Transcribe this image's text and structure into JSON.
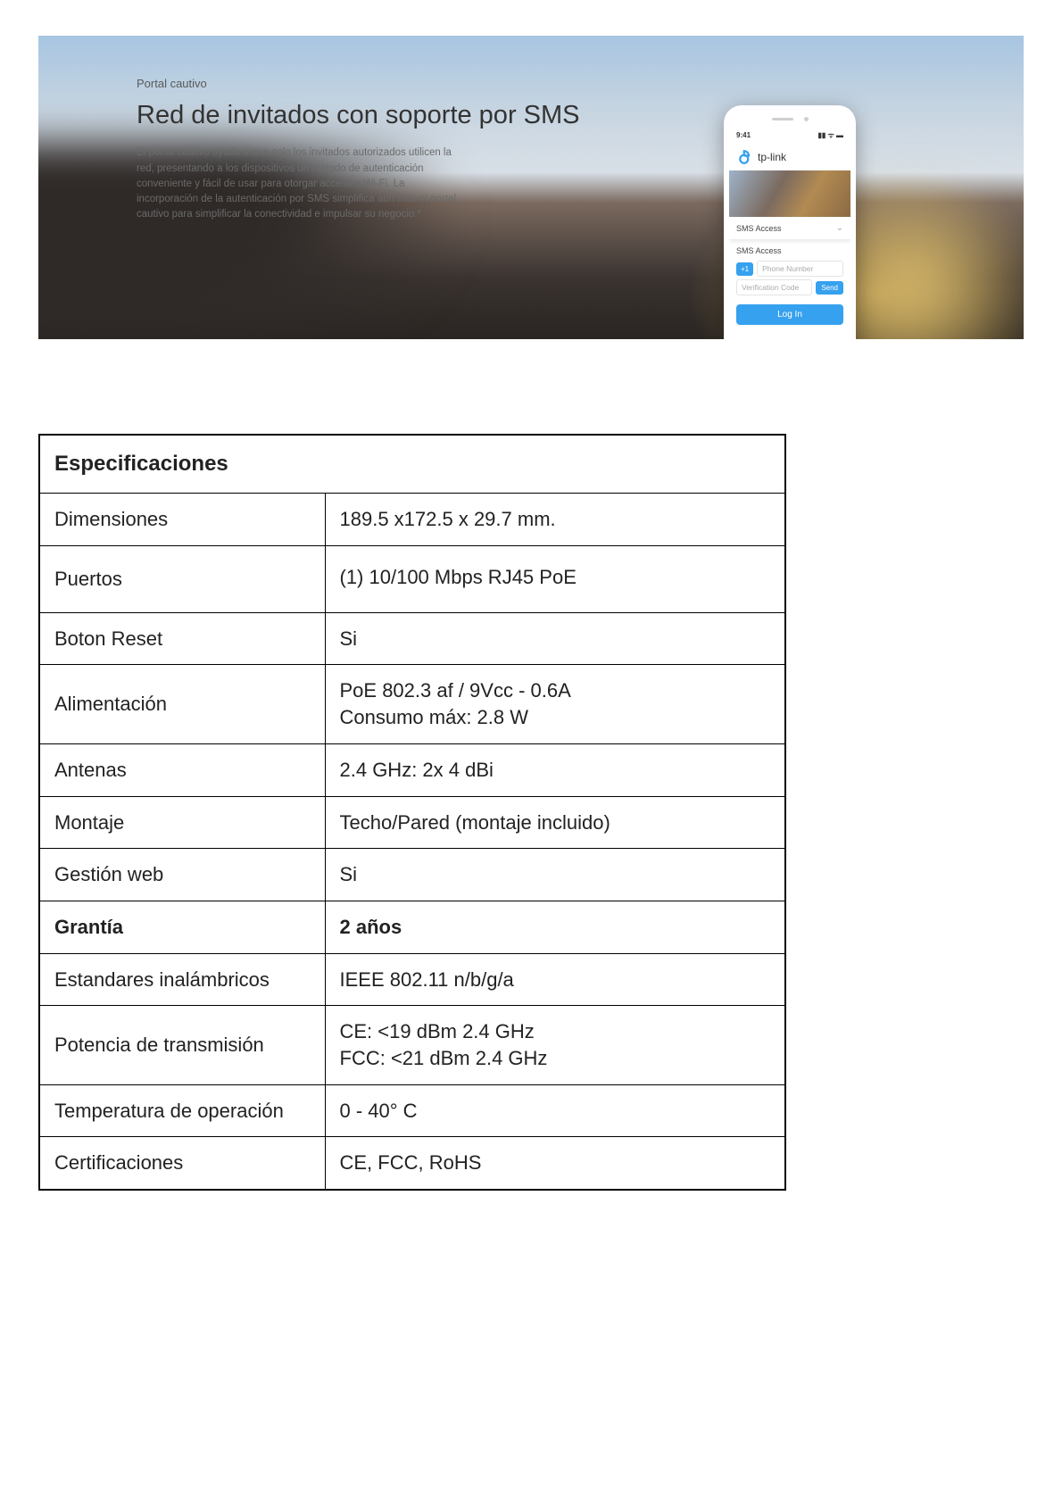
{
  "hero": {
    "eyebrow": "Portal cautivo",
    "title": "Red de invitados con soporte por SMS",
    "body": "El portal cautivo ayuda a que solo los invitados autorizados utilicen la red, presentando a los dispositivos un método de autenticación conveniente y fácil de usar para otorgar acceso a Wi-Fi. La incorporación de la autenticación por SMS simplifica aún más el portal cautivo para simplificar la conectividad e impulsar su negocio.*"
  },
  "phone": {
    "time": "9:41",
    "signal_glyph": "▮▮ ᯤ ▬",
    "brand": "tp-link",
    "dropdown_label": "SMS Access",
    "section_label": "SMS Access",
    "country_code": "+1",
    "phone_placeholder": "Phone Number",
    "verification_placeholder": "Verification Code",
    "send_label": "Send",
    "login_label": "Log In",
    "accent_color": "#3aa0ea"
  },
  "specs": {
    "header": "Especificaciones",
    "rows": [
      {
        "label": "Dimensiones",
        "value": "189.5 x172.5 x 29.7 mm.",
        "bold": false,
        "tall": false
      },
      {
        "label": "Puertos",
        "value": "(1) 10/100 Mbps RJ45 PoE",
        "bold": false,
        "tall": true
      },
      {
        "label": "Boton Reset",
        "value": "Si",
        "bold": false,
        "tall": false
      },
      {
        "label": "Alimentación",
        "value": "PoE 802.3 af / 9Vcc - 0.6A\nConsumo máx: 2.8 W",
        "bold": false,
        "tall": false
      },
      {
        "label": "Antenas",
        "value": "2.4 GHz: 2x 4 dBi",
        "bold": false,
        "tall": false
      },
      {
        "label": "Montaje",
        "value": "Techo/Pared (montaje incluido)",
        "bold": false,
        "tall": false
      },
      {
        "label": "Gestión web",
        "value": "Si",
        "bold": false,
        "tall": false
      },
      {
        "label": "Grantía",
        "value": "2 años",
        "bold": true,
        "tall": false
      },
      {
        "label": "Estandares inalámbricos",
        "value": "IEEE 802.11 n/b/g/a",
        "bold": false,
        "tall": false
      },
      {
        "label": "Potencia de transmisión",
        "value": "CE: <19 dBm 2.4 GHz\nFCC: <21 dBm 2.4 GHz",
        "bold": false,
        "tall": false
      },
      {
        "label": "Temperatura de operación",
        "value": "0 - 40° C",
        "bold": false,
        "tall": false
      },
      {
        "label": "Certificaciones",
        "value": "CE, FCC, RoHS",
        "bold": false,
        "tall": false
      }
    ]
  }
}
